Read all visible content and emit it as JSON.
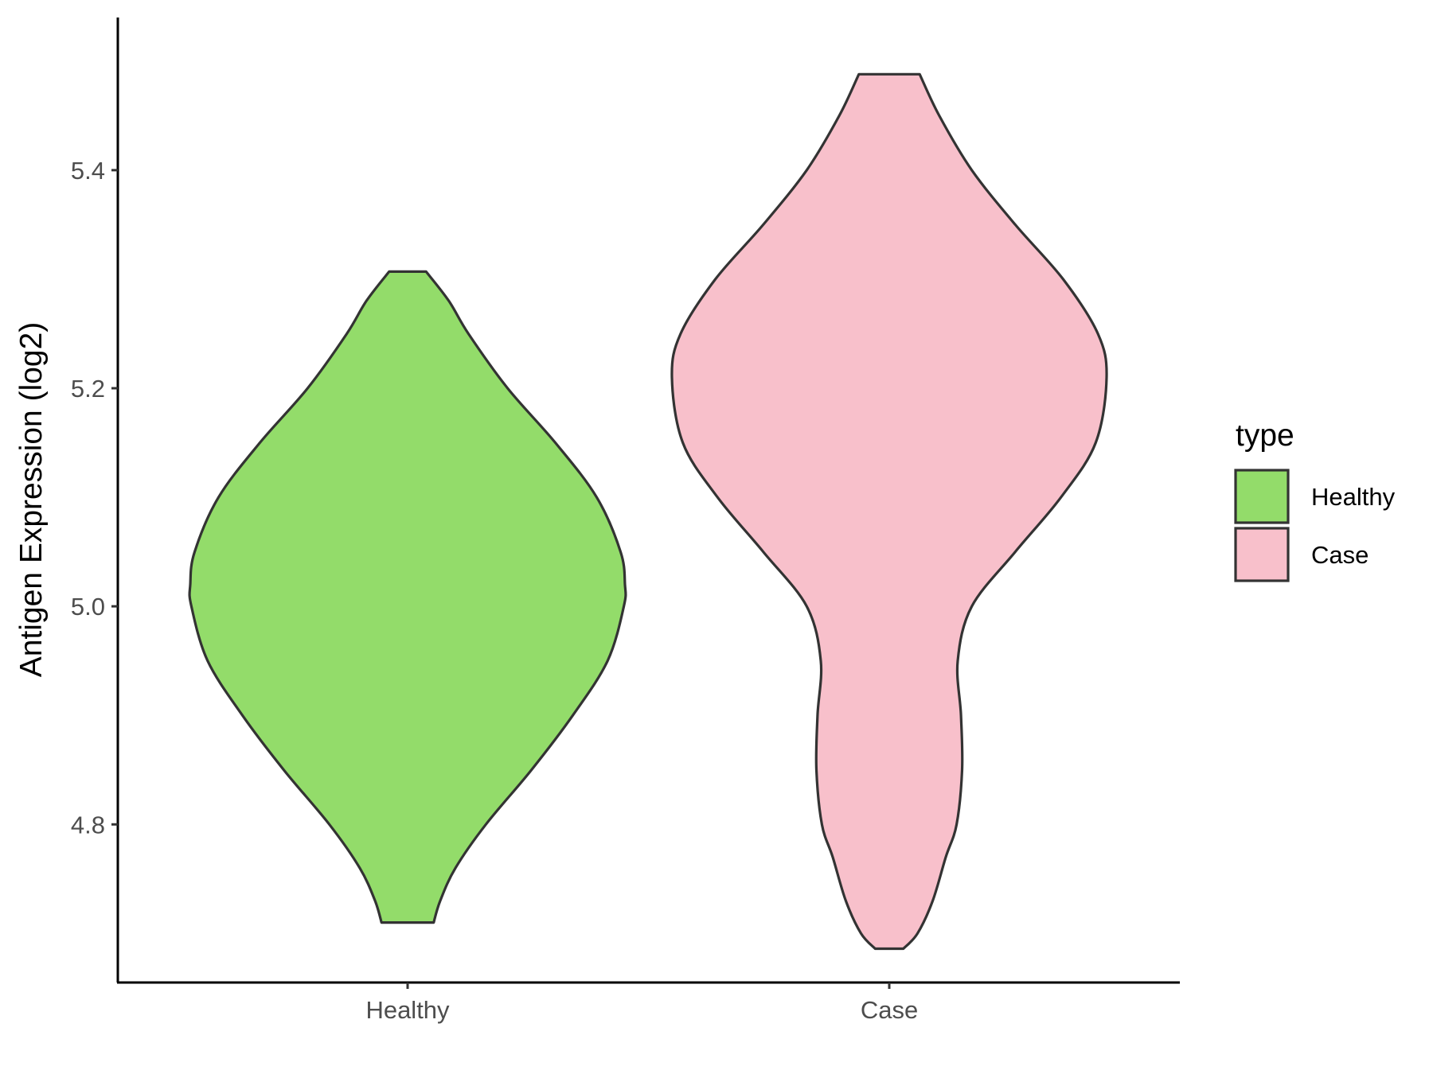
{
  "chart_data": {
    "type": "violin",
    "title": "",
    "xlabel": "",
    "ylabel": "Antigen Expression (log2)",
    "ylim": [
      4.655,
      5.54
    ],
    "yticks": [
      "4.8",
      "5.0",
      "5.2",
      "5.4"
    ],
    "categories": [
      "Healthy",
      "Case"
    ],
    "legend": {
      "title": "type",
      "position": "right"
    },
    "series": [
      {
        "name": "Healthy",
        "color": "#93dc6a",
        "min": 4.71,
        "max": 5.307,
        "density": [
          [
            4.71,
            0.12
          ],
          [
            4.73,
            0.15
          ],
          [
            4.76,
            0.22
          ],
          [
            4.8,
            0.36
          ],
          [
            4.85,
            0.57
          ],
          [
            4.9,
            0.76
          ],
          [
            4.95,
            0.92
          ],
          [
            5.0,
            0.995
          ],
          [
            5.02,
            1.0
          ],
          [
            5.05,
            0.98
          ],
          [
            5.1,
            0.87
          ],
          [
            5.15,
            0.68
          ],
          [
            5.2,
            0.46
          ],
          [
            5.25,
            0.28
          ],
          [
            5.28,
            0.19
          ],
          [
            5.307,
            0.085
          ]
        ]
      },
      {
        "name": "Case",
        "color": "#f8c0cb",
        "min": 4.686,
        "max": 5.488,
        "density": [
          [
            4.686,
            0.065
          ],
          [
            4.7,
            0.13
          ],
          [
            4.73,
            0.2
          ],
          [
            4.77,
            0.26
          ],
          [
            4.8,
            0.31
          ],
          [
            4.85,
            0.335
          ],
          [
            4.9,
            0.33
          ],
          [
            4.95,
            0.315
          ],
          [
            5.0,
            0.38
          ],
          [
            5.05,
            0.58
          ],
          [
            5.1,
            0.79
          ],
          [
            5.15,
            0.95
          ],
          [
            5.21,
            1.0
          ],
          [
            5.25,
            0.96
          ],
          [
            5.3,
            0.8
          ],
          [
            5.35,
            0.58
          ],
          [
            5.4,
            0.38
          ],
          [
            5.45,
            0.23
          ],
          [
            5.488,
            0.14
          ]
        ]
      }
    ]
  }
}
